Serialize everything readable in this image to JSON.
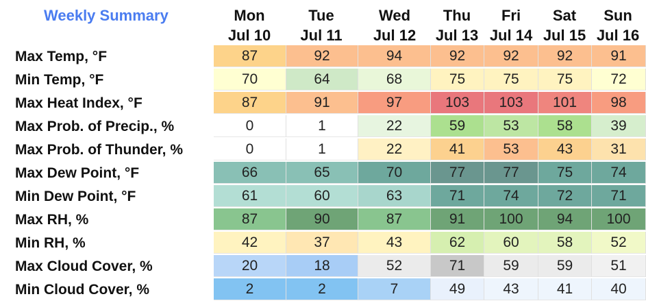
{
  "title": "Weekly Summary",
  "days": [
    {
      "dow": "Mon",
      "date": "Jul 10"
    },
    {
      "dow": "Tue",
      "date": "Jul 11"
    },
    {
      "dow": "Wed",
      "date": "Jul 12"
    },
    {
      "dow": "Thu",
      "date": "Jul 13"
    },
    {
      "dow": "Fri",
      "date": "Jul 14"
    },
    {
      "dow": "Sat",
      "date": "Jul 15"
    },
    {
      "dow": "Sun",
      "date": "Jul 16"
    }
  ],
  "rows": [
    {
      "label": "Max Temp, °F",
      "values": [
        "87",
        "92",
        "94",
        "92",
        "92",
        "92",
        "91"
      ],
      "colors": [
        "#fdd38a",
        "#fcbf8f",
        "#fcbf8f",
        "#fcbf8f",
        "#fcbf8f",
        "#fcbf8f",
        "#fcbf8f"
      ]
    },
    {
      "label": "Min Temp, °F",
      "values": [
        "70",
        "64",
        "68",
        "75",
        "75",
        "75",
        "72"
      ],
      "colors": [
        "#ffffd2",
        "#cfe9c7",
        "#e9f7d9",
        "#fff3c0",
        "#fff3c0",
        "#fff3c0",
        "#ffffd2"
      ]
    },
    {
      "label": "Max Heat Index, °F",
      "values": [
        "87",
        "91",
        "97",
        "103",
        "103",
        "101",
        "98"
      ],
      "colors": [
        "#fdd38a",
        "#fcbf8f",
        "#f89c80",
        "#e9777c",
        "#e9777c",
        "#ef857e",
        "#f89c80"
      ]
    },
    {
      "label": "Max Prob. of Precip., %",
      "values": [
        "0",
        "1",
        "22",
        "59",
        "53",
        "58",
        "39"
      ],
      "colors": [
        "#ffffff",
        "#ffffff",
        "#e7f5e0",
        "#ace08f",
        "#bde6a3",
        "#ace08f",
        "#d6eecd"
      ]
    },
    {
      "label": "Max Prob. of Thunder, %",
      "values": [
        "0",
        "1",
        "22",
        "41",
        "53",
        "43",
        "31"
      ],
      "colors": [
        "#ffffff",
        "#ffffff",
        "#fff1c4",
        "#fcd18f",
        "#fcbf8f",
        "#fcd18f",
        "#fde2ad"
      ]
    },
    {
      "label": "Max Dew Point, °F",
      "values": [
        "66",
        "65",
        "70",
        "77",
        "77",
        "75",
        "74"
      ],
      "colors": [
        "#89c0b5",
        "#89c0b5",
        "#6ea89d",
        "#6a968f",
        "#6a968f",
        "#6ea89d",
        "#6ea89d"
      ]
    },
    {
      "label": "Min Dew Point, °F",
      "values": [
        "61",
        "60",
        "63",
        "71",
        "74",
        "72",
        "71"
      ],
      "colors": [
        "#b3ded4",
        "#b3ded4",
        "#a8d6cc",
        "#6ea89d",
        "#6ea89d",
        "#6ea89d",
        "#6ea89d"
      ]
    },
    {
      "label": "Max RH, %",
      "values": [
        "87",
        "90",
        "87",
        "91",
        "100",
        "94",
        "100"
      ],
      "colors": [
        "#89c58f",
        "#6fa476",
        "#89c58f",
        "#6fa476",
        "#6fa476",
        "#6fa476",
        "#6fa476"
      ]
    },
    {
      "label": "Min RH, %",
      "values": [
        "42",
        "37",
        "43",
        "62",
        "60",
        "58",
        "52"
      ],
      "colors": [
        "#fff3c0",
        "#ffe7b3",
        "#fff3c0",
        "#d6efb0",
        "#e3f4bd",
        "#e3f4bd",
        "#f1f9c8"
      ]
    },
    {
      "label": "Max Cloud Cover, %",
      "values": [
        "20",
        "18",
        "52",
        "71",
        "59",
        "59",
        "51"
      ],
      "colors": [
        "#b8d6f8",
        "#a8cdf6",
        "#ebebeb",
        "#c8c8c8",
        "#ebebeb",
        "#ebebeb",
        "#f1f1f1"
      ]
    },
    {
      "label": "Min Cloud Cover, %",
      "values": [
        "2",
        "2",
        "7",
        "49",
        "43",
        "41",
        "40"
      ],
      "colors": [
        "#82c3f2",
        "#82c3f2",
        "#a9d2f6",
        "#e9f1fc",
        "#eef5fd",
        "#eef5fd",
        "#eef5fd"
      ]
    }
  ]
}
